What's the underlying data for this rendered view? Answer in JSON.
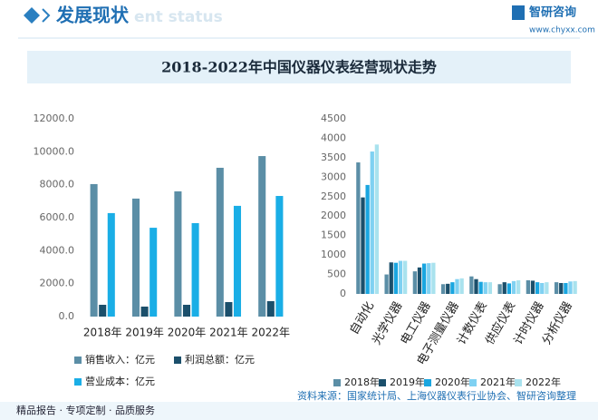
{
  "header": {
    "title": "发展现状",
    "watermark": "ent status",
    "brand": "智研咨询",
    "url": "www.chyxx.com"
  },
  "banner": {
    "title": "2018-2022年中国仪器仪表经营现状走势"
  },
  "footer": {
    "slogan": "精品报告 · 专项定制 · 品质服务",
    "source": "资料来源：国家统计局、上海仪器仪表行业协会、智研咨询整理"
  },
  "chart_data": [
    {
      "type": "bar",
      "categories": [
        "2018年",
        "2019年",
        "2020年",
        "2021年",
        "2022年"
      ],
      "series": [
        {
          "name": "销售收入：亿元",
          "color": "#5b8ea6",
          "values": [
            8040,
            7160,
            7600,
            9030,
            9740
          ]
        },
        {
          "name": "利润总额：亿元",
          "color": "#1b4f6b",
          "values": [
            716,
            606,
            716,
            880,
            936
          ]
        },
        {
          "name": "营业成本：亿元",
          "color": "#1aaee6",
          "values": [
            6280,
            5390,
            5670,
            6720,
            7320
          ]
        }
      ],
      "ylim": [
        0,
        12000
      ],
      "yticks": [
        {
          "value": 0,
          "label": "0.0"
        },
        {
          "value": 2000,
          "label": "2000.0"
        },
        {
          "value": 4000,
          "label": "4000.0"
        },
        {
          "value": 6000,
          "label": "6000.0"
        },
        {
          "value": 8000,
          "label": "8000.0"
        },
        {
          "value": 10000,
          "label": "10000.0"
        },
        {
          "value": 12000,
          "label": "12000.0"
        }
      ]
    },
    {
      "type": "bar",
      "categories": [
        "自动化",
        "光学仪器",
        "电工仪器",
        "电子测量仪器",
        "计数仪表",
        "供应仪表",
        "计时仪器",
        "分析仪器"
      ],
      "series": [
        {
          "name": "2018年",
          "color": "#5b8ea6",
          "values": [
            3380,
            500,
            580,
            250,
            450,
            250,
            350,
            300
          ]
        },
        {
          "name": "2019年",
          "color": "#1b4f6b",
          "values": [
            2480,
            810,
            680,
            260,
            380,
            300,
            340,
            280
          ]
        },
        {
          "name": "2020年",
          "color": "#1aa6e0",
          "values": [
            2800,
            800,
            780,
            300,
            310,
            270,
            300,
            280
          ]
        },
        {
          "name": "2021年",
          "color": "#7fd1f2",
          "values": [
            3660,
            850,
            790,
            380,
            300,
            330,
            280,
            320
          ]
        },
        {
          "name": "2022年",
          "color": "#a9e2ee",
          "values": [
            3840,
            850,
            800,
            400,
            300,
            350,
            300,
            330
          ]
        }
      ],
      "ylim": [
        0,
        4500
      ],
      "yticks": [
        0,
        500,
        1000,
        1500,
        2000,
        2500,
        3000,
        3500,
        4000,
        4500
      ]
    }
  ]
}
